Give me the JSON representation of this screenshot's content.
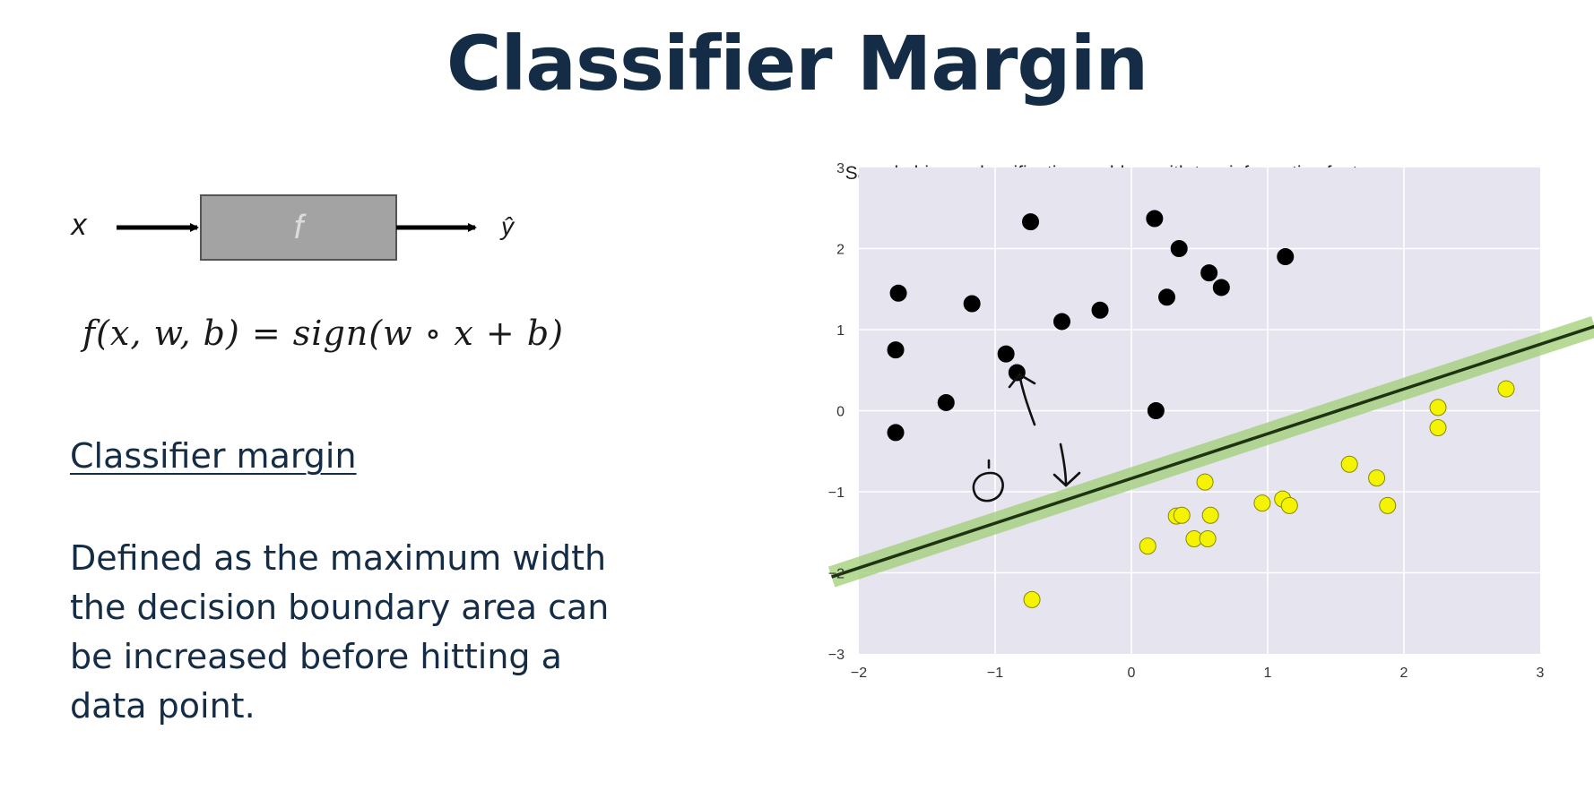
{
  "slide": {
    "title": "Classifier Margin",
    "heading": "Classifier margin",
    "definition": "Defined as the maximum width the decision boundary area can be increased before hitting a data point."
  },
  "diagram": {
    "input_label": "x",
    "function_label": "f",
    "output_label": "ŷ",
    "box_color": "#a3a3a3"
  },
  "equation": "f(x, w, b) = sign(w ∘ x + b)",
  "chart_data": {
    "type": "scatter",
    "title": "Sample binary classification problem with two informative features",
    "xlim": [
      -2,
      3
    ],
    "ylim": [
      -3,
      3
    ],
    "x_ticks": [
      -2,
      -1,
      0,
      1,
      2,
      3
    ],
    "y_ticks": [
      -3,
      -2,
      -1,
      0,
      1,
      2,
      3
    ],
    "x_tick_labels": [
      "−2",
      "−1",
      "0",
      "1",
      "2",
      "3"
    ],
    "y_tick_labels": [
      "−3",
      "−2",
      "−1",
      "0",
      "1",
      "2",
      "3"
    ],
    "grid": true,
    "background_color": "#e5e4ef",
    "series": [
      {
        "color": "#000000",
        "points": [
          [
            -0.74,
            2.33
          ],
          [
            0.17,
            2.37
          ],
          [
            0.35,
            2.0
          ],
          [
            0.57,
            1.7
          ],
          [
            0.66,
            1.52
          ],
          [
            1.13,
            1.9
          ],
          [
            -1.71,
            1.45
          ],
          [
            -1.17,
            1.32
          ],
          [
            -0.51,
            1.1
          ],
          [
            -0.23,
            1.24
          ],
          [
            0.26,
            1.4
          ],
          [
            -1.73,
            0.75
          ],
          [
            -0.92,
            0.7
          ],
          [
            -0.84,
            0.47
          ],
          [
            -1.36,
            0.1
          ],
          [
            0.18,
            0.0
          ],
          [
            -1.73,
            -0.27
          ]
        ]
      },
      {
        "color": "#f4f400",
        "points": [
          [
            2.75,
            0.27
          ],
          [
            2.25,
            0.04
          ],
          [
            2.25,
            -0.21
          ],
          [
            1.6,
            -0.66
          ],
          [
            1.8,
            -0.83
          ],
          [
            1.88,
            -1.17
          ],
          [
            0.54,
            -0.88
          ],
          [
            0.96,
            -1.14
          ],
          [
            1.11,
            -1.09
          ],
          [
            1.16,
            -1.17
          ],
          [
            0.33,
            -1.3
          ],
          [
            0.37,
            -1.29
          ],
          [
            0.58,
            -1.29
          ],
          [
            0.12,
            -1.67
          ],
          [
            0.46,
            -1.58
          ],
          [
            0.56,
            -1.58
          ],
          [
            -0.73,
            -2.33
          ]
        ]
      }
    ],
    "decision_boundary": {
      "x": [
        -2.2,
        3.4
      ],
      "y": [
        -2.05,
        1.04
      ],
      "line_color": "#1d3311"
    },
    "margin_band": {
      "half_width": 0.14,
      "color": "#9fce74"
    }
  }
}
